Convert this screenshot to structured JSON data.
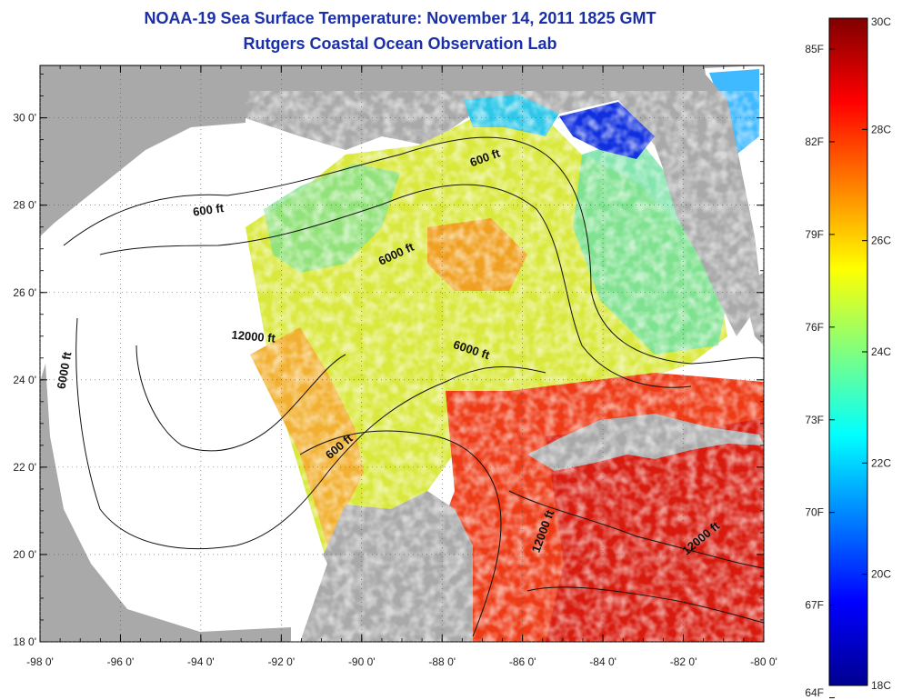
{
  "header": {
    "title": "NOAA-19 Sea Surface Temperature:  November 14, 2011 1825 GMT",
    "subtitle": "Rutgers Coastal Ocean Observation Lab"
  },
  "map": {
    "lon_ticks": [
      "-98 0'",
      "-96 0'",
      "-94 0'",
      "-92 0'",
      "-90 0'",
      "-88 0'",
      "-86 0'",
      "-84 0'",
      "-82 0'",
      "-80 0'"
    ],
    "lat_ticks": [
      "30 0'",
      "28 0'",
      "26 0'",
      "24 0'",
      "22 0'",
      "20 0'",
      "18 0'"
    ],
    "contour_labels": [
      {
        "text": "600 ft",
        "lon": -93.8,
        "lat": 27.8,
        "angle": -8
      },
      {
        "text": "600 ft",
        "lon": -86.9,
        "lat": 29.0,
        "angle": -20
      },
      {
        "text": "6000 ft",
        "lon": -89.1,
        "lat": 26.8,
        "angle": -25
      },
      {
        "text": "12000 ft",
        "lon": -92.7,
        "lat": 24.9,
        "angle": 5
      },
      {
        "text": "6000 ft",
        "lon": -97.3,
        "lat": 24.2,
        "angle": -80
      },
      {
        "text": "6000 ft",
        "lon": -87.3,
        "lat": 24.6,
        "angle": 18
      },
      {
        "text": "600 ft",
        "lon": -90.5,
        "lat": 22.4,
        "angle": -40
      },
      {
        "text": "12000 ft",
        "lon": -85.4,
        "lat": 20.5,
        "angle": -70
      },
      {
        "text": "12000 ft",
        "lon": -81.5,
        "lat": 20.3,
        "angle": -40
      }
    ],
    "colors": {
      "land": "#a9a9a9",
      "nodata": "#ffffff",
      "grid": "#555555"
    }
  },
  "colorbar": {
    "celsius_labels": [
      "30C",
      "28C",
      "26C",
      "24C",
      "22C",
      "20C",
      "18C"
    ],
    "fahrenheit_labels": [
      "85F",
      "82F",
      "79F",
      "76F",
      "73F",
      "70F",
      "67F",
      "64F"
    ],
    "min_c": 18,
    "max_c": 30
  }
}
